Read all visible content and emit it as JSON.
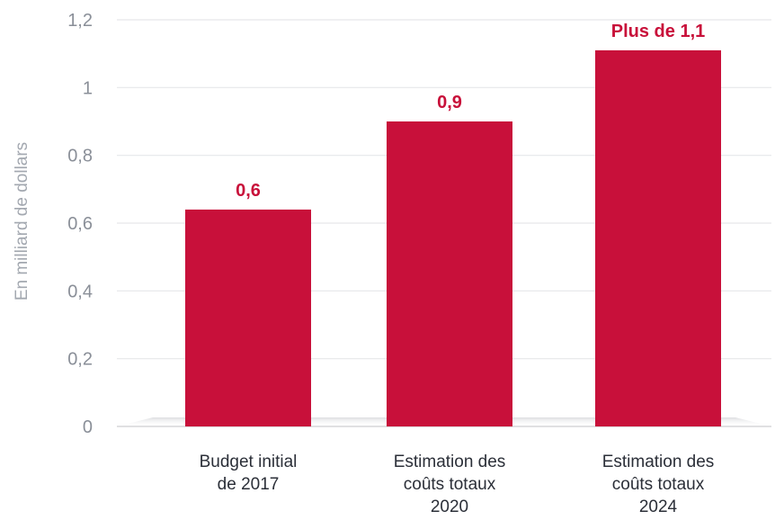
{
  "colors": {
    "bar": "#c8103a",
    "grid": "#e6e7ea",
    "tick": "#8a8f98",
    "label": "#c8103a"
  },
  "chart_data": {
    "type": "bar",
    "title": "",
    "xlabel": "",
    "ylabel": "En milliard de dollars",
    "ylim": [
      0,
      1.2
    ],
    "yticks": [
      0,
      0.2,
      0.4,
      0.6,
      0.8,
      1,
      1.2
    ],
    "ytick_labels": [
      "0",
      "0,2",
      "0,4",
      "0,6",
      "0,8",
      "1",
      "1,2"
    ],
    "grid": true,
    "categories": [
      [
        "Budget initial",
        "de 2017"
      ],
      [
        "Estimation des",
        "coûts totaux",
        "2020"
      ],
      [
        "Estimation des",
        "coûts totaux",
        "2024"
      ]
    ],
    "values": [
      0.64,
      0.9,
      1.11
    ],
    "data_labels": [
      "0,6",
      "0,9",
      "Plus de 1,1"
    ]
  }
}
